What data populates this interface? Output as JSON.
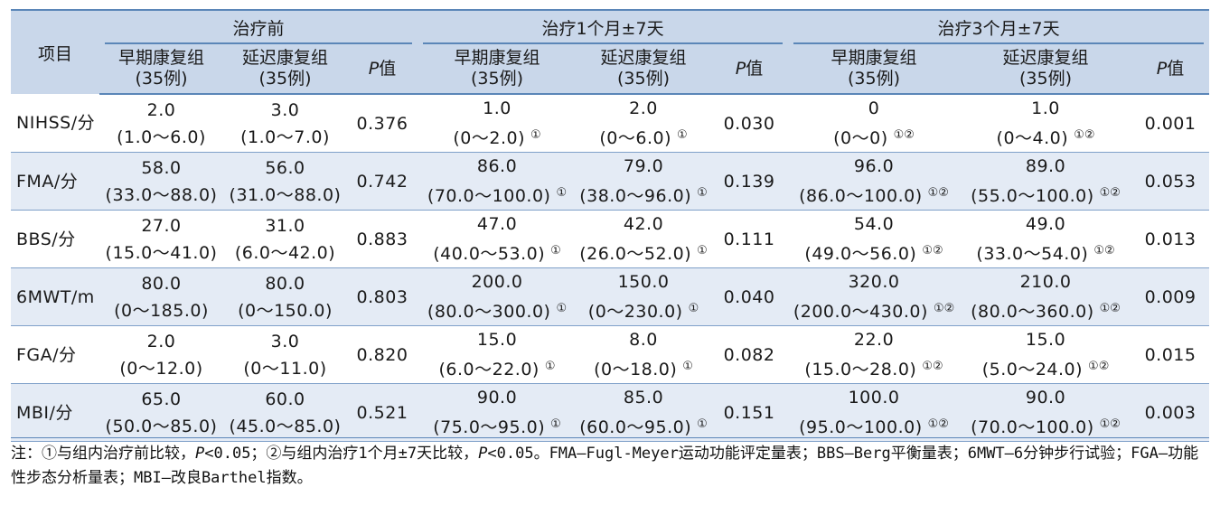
{
  "header": {
    "item": "项目",
    "groups": [
      "治疗前",
      "治疗1个月±7天",
      "治疗3个月±7天"
    ],
    "early": [
      "早期康复组",
      "(35例)"
    ],
    "late": [
      "延迟康复组",
      "(35例)"
    ],
    "p_italic": "P",
    "p_suffix": "值"
  },
  "rows": [
    {
      "name": "NIHSS/分",
      "cells": [
        [
          "2.0",
          "(1.0～6.0)",
          ""
        ],
        [
          "3.0",
          "(1.0～7.0)",
          ""
        ],
        "0.376",
        [
          "1.0",
          "(0～2.0)",
          "①"
        ],
        [
          "2.0",
          "(0～6.0)",
          "①"
        ],
        "0.030",
        [
          "0",
          "(0～0)",
          "①②"
        ],
        [
          "1.0",
          "(0～4.0)",
          "①②"
        ],
        "0.001"
      ]
    },
    {
      "name": "FMA/分",
      "cells": [
        [
          "58.0",
          "(33.0～88.0)",
          ""
        ],
        [
          "56.0",
          "(31.0～88.0)",
          ""
        ],
        "0.742",
        [
          "86.0",
          "(70.0～100.0)",
          "①"
        ],
        [
          "79.0",
          "(38.0～96.0)",
          "①"
        ],
        "0.139",
        [
          "96.0",
          "(86.0～100.0)",
          "①②"
        ],
        [
          "89.0",
          "(55.0～100.0)",
          "①②"
        ],
        "0.053"
      ]
    },
    {
      "name": "BBS/分",
      "cells": [
        [
          "27.0",
          "(15.0～41.0)",
          ""
        ],
        [
          "31.0",
          "(6.0～42.0)",
          ""
        ],
        "0.883",
        [
          "47.0",
          "(40.0～53.0)",
          "①"
        ],
        [
          "42.0",
          "(26.0～52.0)",
          "①"
        ],
        "0.111",
        [
          "54.0",
          "(49.0～56.0)",
          "①②"
        ],
        [
          "49.0",
          "(33.0～54.0)",
          "①②"
        ],
        "0.013"
      ]
    },
    {
      "name": "6MWT/m",
      "cells": [
        [
          "80.0",
          "(0～185.0)",
          ""
        ],
        [
          "80.0",
          "(0～150.0)",
          ""
        ],
        "0.803",
        [
          "200.0",
          "(80.0～300.0)",
          "①"
        ],
        [
          "150.0",
          "(0～230.0)",
          "①"
        ],
        "0.040",
        [
          "320.0",
          "(200.0～430.0)",
          "①②"
        ],
        [
          "210.0",
          "(80.0～360.0)",
          "①②"
        ],
        "0.009"
      ]
    },
    {
      "name": "FGA/分",
      "cells": [
        [
          "2.0",
          "(0～12.0)",
          ""
        ],
        [
          "3.0",
          "(0～11.0)",
          ""
        ],
        "0.820",
        [
          "15.0",
          "(6.0～22.0)",
          "①"
        ],
        [
          "8.0",
          "(0～18.0)",
          "①"
        ],
        "0.082",
        [
          "22.0",
          "(15.0～28.0)",
          "①②"
        ],
        [
          "15.0",
          "(5.0～24.0)",
          "①②"
        ],
        "0.015"
      ]
    },
    {
      "name": "MBI/分",
      "cells": [
        [
          "65.0",
          "(50.0～85.0)",
          ""
        ],
        [
          "60.0",
          "(45.0～85.0)",
          ""
        ],
        "0.521",
        [
          "90.0",
          "(75.0～95.0)",
          "①"
        ],
        [
          "85.0",
          "(60.0～95.0)",
          "①"
        ],
        "0.151",
        [
          "100.0",
          "(95.0～100.0)",
          "①②"
        ],
        [
          "90.0",
          "(70.0～100.0)",
          "①②"
        ],
        "0.003"
      ]
    }
  ],
  "note": {
    "a": "注：①与组内治疗前比较，",
    "p1": "P",
    "b": "<0.05；②与组内治疗1个月±7天比较，",
    "p2": "P",
    "c": "<0.05。FMA—Fugl-Meyer运动功能评定量表；BBS—Berg平衡量表；6MWT—6分钟步行试验；FGA—功能性步态分析量表；MBI—改良Barthel指数。"
  },
  "colors": {
    "header_bg": "#c9d7ea",
    "alt_row": "#e4ebf5",
    "rule": "#5b86b8"
  }
}
